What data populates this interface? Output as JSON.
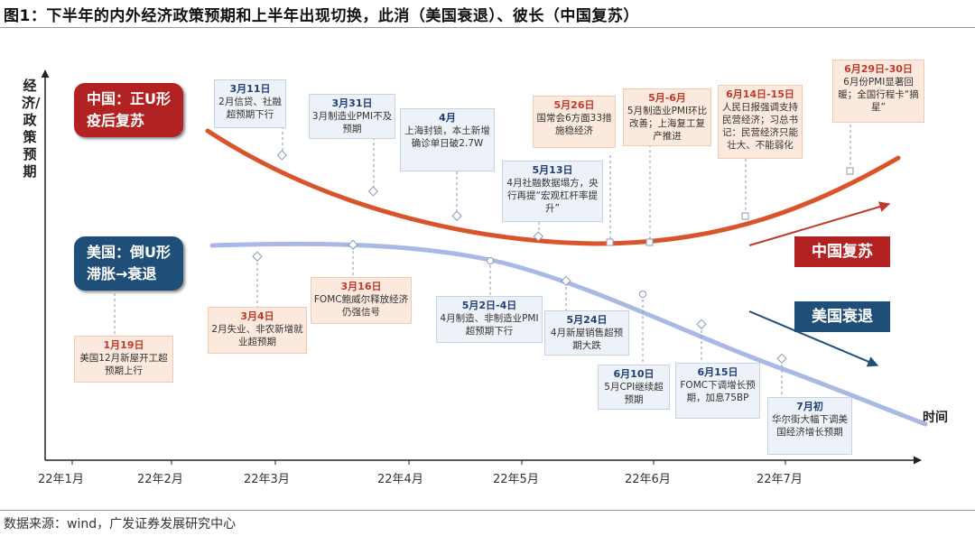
{
  "title": "图1：下半年的内外经济政策预期和上半年出现切换，此消（美国衰退）、彼长（中国复苏）",
  "y_axis_label": "经济/政策预期",
  "x_axis_label": "时间",
  "x_ticks": [
    "22年1月",
    "22年2月",
    "22年3月",
    "22年4月",
    "22年5月",
    "22年6月",
    "22年7月"
  ],
  "china_tag": [
    "中国：正U形",
    "疫后复苏"
  ],
  "us_tag": [
    "美国：倒U形",
    "滞胀→衰退"
  ],
  "china_legend": "中国复苏",
  "us_legend": "美国衰退",
  "china_notes": [
    {
      "date": "3月11日",
      "text": "2月信贷、社融超预期下行"
    },
    {
      "date": "3月31日",
      "text": "3月制造业PMI不及预期"
    },
    {
      "date": "4月",
      "text": "上海封锁，本土新增确诊单日破2.7W"
    },
    {
      "date": "5月13日",
      "text": "4月社融数据塌方，央行再提“宏观杠杆率提升”"
    },
    {
      "date": "5月26日",
      "text": "国常会6方面33措施稳经济"
    },
    {
      "date": "5月-6月",
      "text": "5月制造业PMI环比改善；上海复工复产推进"
    },
    {
      "date": "6月14日-15日",
      "text": "人民日报强调支持民营经济；习总书记：民营经济只能壮大、不能弱化"
    },
    {
      "date": "6月29日-30日",
      "text": "6月份PMI显著回暖；全国行程卡“摘星”"
    }
  ],
  "us_notes": [
    {
      "date": "1月19日",
      "text": "美国12月新屋开工超预期上行"
    },
    {
      "date": "3月4日",
      "text": "2月失业、非农新增就业超预期"
    },
    {
      "date": "3月16日",
      "text": "FOMC鲍威尔释放经济仍强信号"
    },
    {
      "date": "5月2日-4日",
      "text": "4月制造、非制造业PMI超预期下行"
    },
    {
      "date": "5月24日",
      "text": "4月新屋销售超预期大跌"
    },
    {
      "date": "6月10日",
      "text": "5月CPI继续超预期"
    },
    {
      "date": "6月15日",
      "text": "FOMC下调增长预期，加息75BP"
    },
    {
      "date": "7月初",
      "text": "华尔街大幅下调美国经济增长预期"
    }
  ],
  "source": "数据来源：wind，广发证券发展研究中心",
  "colors": {
    "china": "#d9542b",
    "us": "#9fb0e0",
    "china_dark": "#b22222",
    "us_dark": "#1f4e79"
  }
}
